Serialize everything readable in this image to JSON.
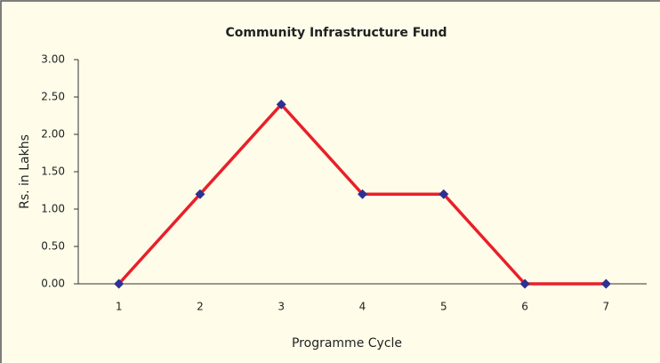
{
  "chart_data": {
    "type": "line",
    "title": "Community Infrastructure Fund",
    "x_label": "Programme Cycle",
    "y_label": "Rs. in Lakhs",
    "categories": [
      "1",
      "2",
      "3",
      "4",
      "5",
      "6",
      "7"
    ],
    "values": [
      0,
      1.2,
      2.4,
      1.2,
      1.2,
      0,
      0
    ],
    "color": "#e8202a",
    "marker_color": "#2e3192",
    "ylim": [
      0,
      3
    ],
    "yticks": [
      {
        "value": 0,
        "label": "0.00"
      },
      {
        "value": 0.5,
        "label": "0.50"
      },
      {
        "value": 1,
        "label": "1.00"
      },
      {
        "value": 1.5,
        "label": "1.50"
      },
      {
        "value": 2,
        "label": "2.00"
      },
      {
        "value": 2.5,
        "label": "2.50"
      },
      {
        "value": 3,
        "label": "3.00"
      }
    ],
    "grid": false
  }
}
